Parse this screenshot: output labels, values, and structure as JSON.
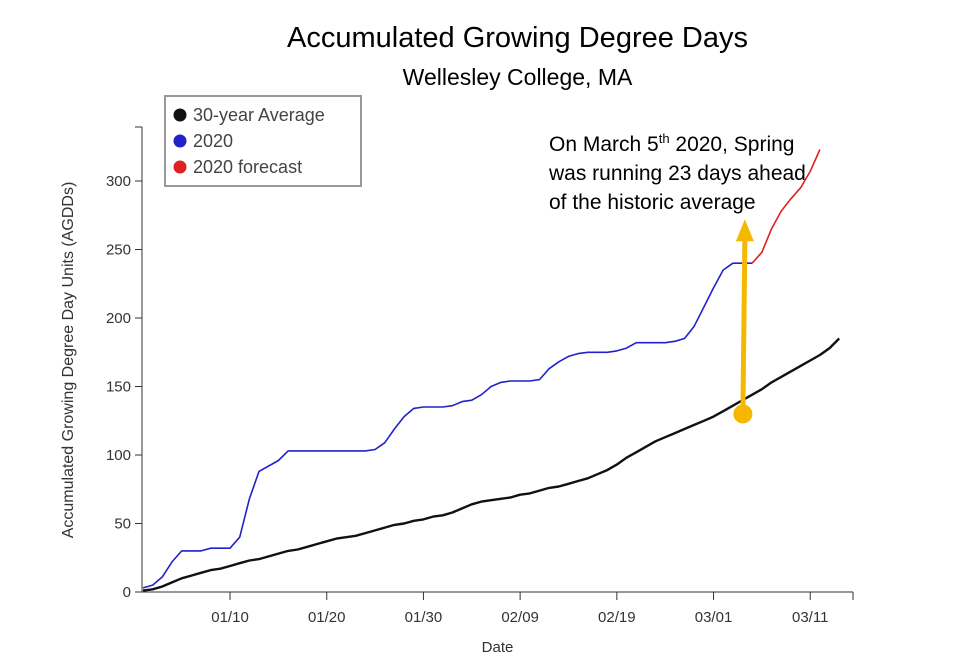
{
  "header": {
    "title": "Accumulated Growing Degree Days",
    "subtitle": "Wellesley College, MA"
  },
  "annotation": {
    "pre": "On March 5",
    "sup": "th",
    "post": " 2020, Spring was running 23 days ahead of the historic average"
  },
  "colors": {
    "average": "#111111",
    "current": "#2222cc",
    "forecast": "#dd2222",
    "arrow": "#f5b800"
  },
  "chart_data": {
    "type": "line",
    "xlabel": "Date",
    "ylabel": "Accumulated Growing Degree Day Units (AGDDs)",
    "x_tick_labels": [
      "01/10",
      "01/20",
      "01/30",
      "02/09",
      "02/19",
      "03/01",
      "03/11"
    ],
    "x_ticks_day": [
      10,
      20,
      30,
      40,
      50,
      60,
      70
    ],
    "xlim_day": [
      1,
      74
    ],
    "ylim": [
      0,
      340
    ],
    "y_ticks": [
      0,
      50,
      100,
      150,
      200,
      250,
      300
    ],
    "legend": {
      "placement": "top-left"
    },
    "series": [
      {
        "name": "30-year Average",
        "x_day": [
          1,
          2,
          3,
          4,
          5,
          6,
          7,
          8,
          9,
          10,
          11,
          12,
          13,
          14,
          15,
          16,
          17,
          18,
          19,
          20,
          21,
          22,
          23,
          24,
          25,
          26,
          27,
          28,
          29,
          30,
          31,
          32,
          33,
          34,
          35,
          36,
          37,
          38,
          39,
          40,
          41,
          42,
          43,
          44,
          45,
          46,
          47,
          48,
          49,
          50,
          51,
          52,
          53,
          54,
          55,
          56,
          57,
          58,
          59,
          60,
          61,
          62,
          63,
          64,
          65,
          66,
          67,
          68,
          69,
          70,
          71,
          72,
          73
        ],
        "values": [
          1,
          2,
          4,
          7,
          10,
          12,
          14,
          16,
          17,
          19,
          21,
          23,
          24,
          26,
          28,
          30,
          31,
          33,
          35,
          37,
          39,
          40,
          41,
          43,
          45,
          47,
          49,
          50,
          52,
          53,
          55,
          56,
          58,
          61,
          64,
          66,
          67,
          68,
          69,
          71,
          72,
          74,
          76,
          77,
          79,
          81,
          83,
          86,
          89,
          93,
          98,
          102,
          106,
          110,
          113,
          116,
          119,
          122,
          125,
          128,
          132,
          136,
          140,
          144,
          148,
          153,
          157,
          161,
          165,
          169,
          173,
          178,
          185
        ]
      },
      {
        "name": "2020",
        "x_day": [
          1,
          2,
          3,
          4,
          5,
          6,
          7,
          8,
          9,
          10,
          11,
          12,
          13,
          14,
          15,
          16,
          17,
          18,
          19,
          20,
          21,
          22,
          23,
          24,
          25,
          26,
          27,
          28,
          29,
          30,
          31,
          32,
          33,
          34,
          35,
          36,
          37,
          38,
          39,
          40,
          41,
          42,
          43,
          44,
          45,
          46,
          47,
          48,
          49,
          50,
          51,
          52,
          53,
          54,
          55,
          56,
          57,
          58,
          59,
          60,
          61,
          62,
          63,
          64
        ],
        "values": [
          3,
          5,
          11,
          22,
          30,
          30,
          30,
          32,
          32,
          32,
          40,
          68,
          88,
          92,
          96,
          103,
          103,
          103,
          103,
          103,
          103,
          103,
          103,
          103,
          104,
          109,
          119,
          128,
          134,
          135,
          135,
          135,
          136,
          139,
          140,
          144,
          150,
          153,
          154,
          154,
          154,
          155,
          163,
          168,
          172,
          174,
          175,
          175,
          175,
          176,
          178,
          182,
          182,
          182,
          182,
          183,
          185,
          194,
          208,
          222,
          235,
          240,
          240,
          240
        ]
      },
      {
        "name": "2020 forecast",
        "x_day": [
          64,
          65,
          66,
          67,
          68,
          69,
          70,
          71
        ],
        "values": [
          240,
          248,
          265,
          278,
          287,
          295,
          307,
          323
        ]
      }
    ],
    "arrow": {
      "x_day": 62,
      "from": 138,
      "to": 275
    }
  }
}
